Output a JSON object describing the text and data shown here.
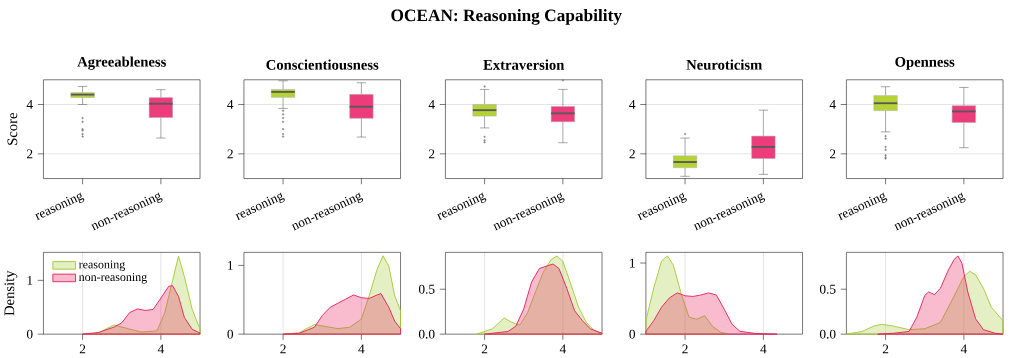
{
  "chart_data": [
    {
      "type": "box",
      "title": "Agreeableness",
      "ylabel": "Score",
      "annotations": [
        "OCEAN: Reasoning Capability"
      ],
      "categories": [
        "reasoning",
        "non-reasoning"
      ],
      "colors": [
        "#b5d334",
        "#ec3d7a"
      ],
      "ylim": [
        1,
        5
      ],
      "yticks": [
        2,
        4
      ],
      "grid": "y",
      "boxes": [
        {
          "low": 4.0,
          "q1": 4.28,
          "median": 4.4,
          "q3": 4.48,
          "high": 4.73,
          "outliers": [
            3.45,
            3.3,
            3.0,
            2.95,
            2.8,
            2.7
          ]
        },
        {
          "low": 2.64,
          "q1": 3.47,
          "median": 4.03,
          "q3": 4.28,
          "high": 4.6
        }
      ]
    },
    {
      "type": "box",
      "title": "Conscientiousness",
      "categories": [
        "reasoning",
        "non-reasoning"
      ],
      "colors": [
        "#b5d334",
        "#ec3d7a"
      ],
      "ylim": [
        1,
        5
      ],
      "yticks": [
        2,
        4
      ],
      "grid": "y",
      "boxes": [
        {
          "low": 3.84,
          "q1": 4.29,
          "median": 4.51,
          "q3": 4.61,
          "high": 4.96,
          "outliers": [
            3.75,
            3.6,
            3.45,
            3.3,
            3.0,
            2.8,
            2.7
          ]
        },
        {
          "low": 2.68,
          "q1": 3.44,
          "median": 3.91,
          "q3": 4.41,
          "high": 4.88
        }
      ]
    },
    {
      "type": "box",
      "title": "Extraversion",
      "categories": [
        "reasoning",
        "non-reasoning"
      ],
      "colors": [
        "#b5d334",
        "#ec3d7a"
      ],
      "ylim": [
        1,
        5
      ],
      "yticks": [
        2,
        4
      ],
      "grid": "y",
      "boxes": [
        {
          "low": 3.05,
          "q1": 3.53,
          "median": 3.77,
          "q3": 4.0,
          "high": 4.61,
          "outliers": [
            4.73,
            2.69,
            2.55,
            2.47
          ]
        },
        {
          "low": 2.45,
          "q1": 3.3,
          "median": 3.64,
          "q3": 3.92,
          "high": 4.61,
          "outliers": [
            4.98
          ]
        }
      ]
    },
    {
      "type": "box",
      "title": "Neuroticism",
      "categories": [
        "reasoning",
        "non-reasoning"
      ],
      "colors": [
        "#b5d334",
        "#ec3d7a"
      ],
      "ylim": [
        1,
        5
      ],
      "yticks": [
        2,
        4
      ],
      "grid": "y",
      "boxes": [
        {
          "low": 1.09,
          "q1": 1.44,
          "median": 1.67,
          "q3": 1.92,
          "high": 2.64,
          "outliers": [
            2.8
          ]
        },
        {
          "low": 1.17,
          "q1": 1.81,
          "median": 2.28,
          "q3": 2.72,
          "high": 3.77
        }
      ]
    },
    {
      "type": "box",
      "title": "Openness",
      "categories": [
        "reasoning",
        "non-reasoning"
      ],
      "colors": [
        "#b5d334",
        "#ec3d7a"
      ],
      "ylim": [
        1,
        5
      ],
      "yticks": [
        2,
        4
      ],
      "grid": "y",
      "boxes": [
        {
          "low": 2.89,
          "q1": 3.75,
          "median": 4.05,
          "q3": 4.36,
          "high": 4.72,
          "outliers": [
            2.72,
            2.62,
            2.28,
            2.16,
            1.94,
            1.86,
            1.81
          ]
        },
        {
          "low": 2.25,
          "q1": 3.27,
          "median": 3.72,
          "q3": 3.95,
          "high": 4.69
        }
      ]
    },
    {
      "type": "area",
      "ylabel": "Density",
      "xlim": [
        1,
        5
      ],
      "xticks": [
        2,
        4
      ],
      "ylim": [
        0,
        1.52
      ],
      "yticks": [
        0,
        1
      ],
      "grid": "x",
      "legend": "top left",
      "series": [
        {
          "name": "reasoning",
          "color": "#a6c93a",
          "x": [
            2.1,
            2.4,
            2.8,
            3.5,
            3.9,
            4.1,
            4.3,
            4.45,
            4.6,
            4.8,
            5.0
          ],
          "values": [
            0,
            0.02,
            0.17,
            0.04,
            0.06,
            0.4,
            1.0,
            1.45,
            1.07,
            0.46,
            0.09
          ]
        },
        {
          "name": "non-reasoning",
          "color": "#e8225e",
          "x": [
            2.0,
            2.4,
            2.8,
            3.0,
            3.2,
            3.4,
            3.6,
            3.8,
            4.0,
            4.2,
            4.3,
            4.45,
            4.6,
            4.8,
            5.0
          ],
          "values": [
            0,
            0.03,
            0.13,
            0.21,
            0.4,
            0.47,
            0.44,
            0.46,
            0.67,
            0.89,
            0.9,
            0.7,
            0.31,
            0.09,
            0.02
          ]
        }
      ]
    },
    {
      "type": "area",
      "xlim": [
        1,
        5
      ],
      "xticks": [
        2,
        4
      ],
      "ylim": [
        0,
        1.19
      ],
      "yticks": [
        0,
        1
      ],
      "grid": "x",
      "series": [
        {
          "color": "#a6c93a",
          "x": [
            2.0,
            2.4,
            2.8,
            3.0,
            3.4,
            3.7,
            4.0,
            4.2,
            4.4,
            4.55,
            4.7,
            4.85,
            5.0
          ],
          "values": [
            0,
            0.02,
            0.14,
            0.12,
            0.08,
            0.1,
            0.22,
            0.56,
            0.94,
            1.14,
            0.99,
            0.56,
            0.34
          ]
        },
        {
          "color": "#e8225e",
          "x": [
            2.0,
            2.4,
            2.8,
            3.0,
            3.2,
            3.4,
            3.6,
            3.8,
            4.0,
            4.2,
            4.4,
            4.5,
            4.7,
            4.85,
            5.0
          ],
          "values": [
            0,
            0.01,
            0.1,
            0.27,
            0.39,
            0.45,
            0.51,
            0.57,
            0.53,
            0.52,
            0.57,
            0.59,
            0.39,
            0.19,
            0.08
          ]
        }
      ]
    },
    {
      "type": "area",
      "xlim": [
        1,
        5
      ],
      "xticks": [
        2,
        4
      ],
      "ylim": [
        0,
        0.91
      ],
      "yticks": [
        {
          "value": 0,
          "label": "0.0"
        },
        0.5
      ],
      "grid": "x",
      "series": [
        {
          "color": "#a6c93a",
          "x": [
            1.8,
            2.2,
            2.5,
            2.7,
            2.9,
            3.1,
            3.3,
            3.5,
            3.7,
            3.85,
            4.0,
            4.2,
            4.4,
            4.6,
            4.8,
            5.0
          ],
          "values": [
            0,
            0.06,
            0.18,
            0.13,
            0.1,
            0.24,
            0.47,
            0.69,
            0.83,
            0.87,
            0.81,
            0.56,
            0.3,
            0.13,
            0.04,
            0.01
          ]
        },
        {
          "color": "#e8225e",
          "x": [
            2.0,
            2.4,
            2.6,
            2.8,
            3.0,
            3.2,
            3.4,
            3.6,
            3.75,
            3.9,
            4.1,
            4.3,
            4.5,
            4.7,
            5.0
          ],
          "values": [
            0,
            0.02,
            0.03,
            0.09,
            0.28,
            0.58,
            0.73,
            0.76,
            0.78,
            0.73,
            0.51,
            0.26,
            0.15,
            0.06,
            0.01
          ]
        }
      ]
    },
    {
      "type": "area",
      "xlim": [
        1,
        5
      ],
      "xticks": [
        2,
        4
      ],
      "ylim": [
        0,
        1.15
      ],
      "yticks": [
        0,
        1
      ],
      "grid": "x",
      "series": [
        {
          "color": "#a6c93a",
          "x": [
            1.0,
            1.2,
            1.4,
            1.55,
            1.7,
            1.9,
            2.1,
            2.3,
            2.5,
            2.7,
            2.9,
            3.1
          ],
          "values": [
            0.19,
            0.65,
            1.03,
            1.1,
            0.97,
            0.57,
            0.24,
            0.21,
            0.26,
            0.11,
            0.03,
            0
          ]
        },
        {
          "color": "#e8225e",
          "x": [
            1.0,
            1.2,
            1.4,
            1.6,
            1.8,
            2.0,
            2.2,
            2.4,
            2.6,
            2.8,
            3.0,
            3.2,
            3.4,
            3.8,
            4.35
          ],
          "values": [
            0.04,
            0.19,
            0.38,
            0.51,
            0.58,
            0.54,
            0.53,
            0.55,
            0.58,
            0.55,
            0.35,
            0.14,
            0.04,
            0.01,
            0
          ]
        }
      ]
    },
    {
      "type": "area",
      "xlim": [
        1,
        5
      ],
      "xticks": [
        2,
        4
      ],
      "ylim": [
        0,
        0.91
      ],
      "yticks": [
        {
          "value": 0,
          "label": "0.0"
        },
        0.5
      ],
      "grid": "x",
      "series": [
        {
          "color": "#a6c93a",
          "x": [
            1.0,
            1.4,
            1.7,
            1.9,
            2.2,
            2.6,
            3.0,
            3.4,
            3.7,
            4.0,
            4.15,
            4.3,
            4.5,
            4.7,
            5.0
          ],
          "values": [
            0,
            0.03,
            0.09,
            0.11,
            0.09,
            0.05,
            0.06,
            0.13,
            0.38,
            0.64,
            0.7,
            0.66,
            0.51,
            0.3,
            0.15
          ]
        },
        {
          "color": "#e8225e",
          "x": [
            1.8,
            2.2,
            2.6,
            2.8,
            3.0,
            3.1,
            3.25,
            3.4,
            3.6,
            3.75,
            3.85,
            3.95,
            4.1,
            4.3,
            4.5,
            4.8,
            5.0
          ],
          "values": [
            0,
            0.01,
            0.03,
            0.19,
            0.43,
            0.47,
            0.44,
            0.51,
            0.71,
            0.83,
            0.87,
            0.79,
            0.47,
            0.17,
            0.05,
            0.01,
            0
          ]
        }
      ]
    }
  ]
}
